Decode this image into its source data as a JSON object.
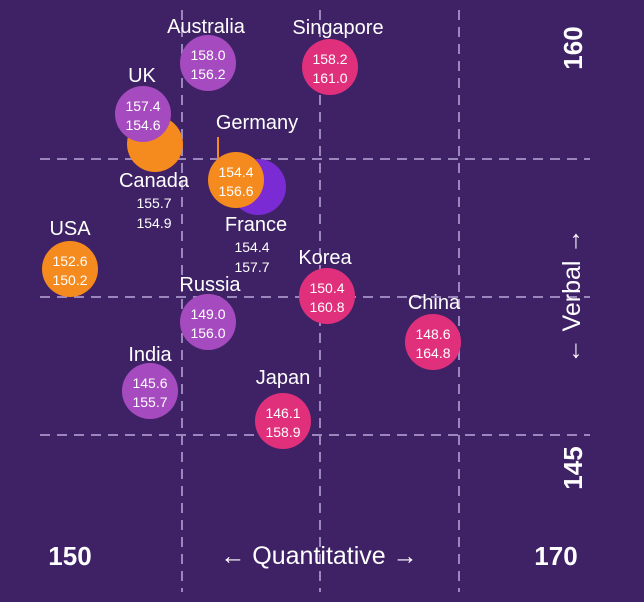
{
  "chart_data": {
    "type": "scatter",
    "xlabel": "← Quantitative →",
    "ylabel": "← Verbal →",
    "x_range_labels": {
      "min": "150",
      "max": "170"
    },
    "y_range_labels": {
      "min": "145",
      "max": "160"
    },
    "grid": true,
    "colors": {
      "background": "#3f2266",
      "purple": "#a64bbf",
      "pink": "#e0307c",
      "orange": "#f58a1f",
      "violet": "#7a2bd4"
    },
    "points": [
      {
        "name": "Australia",
        "verbal": "158.0",
        "quant": "156.2",
        "color": "purple"
      },
      {
        "name": "Singapore",
        "verbal": "158.2",
        "quant": "161.0",
        "color": "pink"
      },
      {
        "name": "UK",
        "verbal": "157.4",
        "quant": "154.6",
        "color": "purple"
      },
      {
        "name": "Canada",
        "verbal": "155.7",
        "quant": "154.9",
        "color": "orange"
      },
      {
        "name": "Germany",
        "verbal": "154.4",
        "quant": "156.6",
        "color": "orange"
      },
      {
        "name": "France",
        "verbal": "154.4",
        "quant": "157.7",
        "color": "violet"
      },
      {
        "name": "USA",
        "verbal": "152.6",
        "quant": "150.2",
        "color": "orange"
      },
      {
        "name": "Korea",
        "verbal": "150.4",
        "quant": "160.8",
        "color": "pink"
      },
      {
        "name": "Russia",
        "verbal": "149.0",
        "quant": "156.0",
        "color": "purple"
      },
      {
        "name": "China",
        "verbal": "148.6",
        "quant": "164.8",
        "color": "pink"
      },
      {
        "name": "India",
        "verbal": "145.6",
        "quant": "155.7",
        "color": "purple"
      },
      {
        "name": "Japan",
        "verbal": "146.1",
        "quant": "158.9",
        "color": "pink"
      }
    ]
  }
}
